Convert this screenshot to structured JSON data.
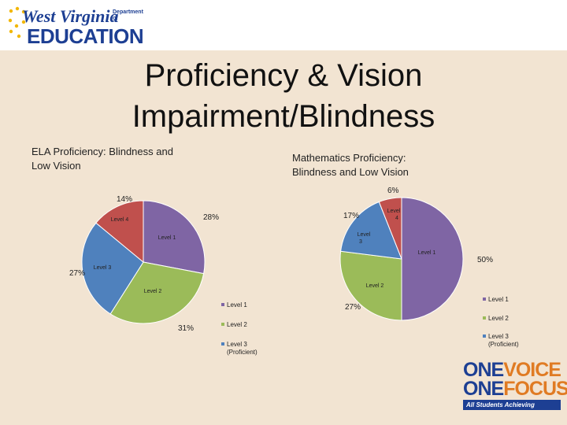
{
  "header": {
    "logo_line1": "West Virginia",
    "logo_dept": "Department of",
    "logo_line2": "EDUCATION"
  },
  "slide": {
    "title": "Proficiency & Vision Impairment/Blindness"
  },
  "branding": {
    "line1_prefix": "ONE",
    "line1_word": "VOICE",
    "line2_prefix": "ONE",
    "line2_word": "FOCUS",
    "tagline": "All Students Achieving"
  },
  "colors": {
    "level1": "#7f65a4",
    "level2": "#9bbb59",
    "level3": "#4f81bd",
    "level4": "#c0504d"
  },
  "chart_data": [
    {
      "type": "pie",
      "title": "ELA Proficiency: Blindness and Low Vision",
      "categories": [
        "Level 1",
        "Level 2",
        "Level 3",
        "Level 4"
      ],
      "values": [
        28,
        31,
        27,
        14
      ],
      "labels": [
        "28%",
        "31%",
        "27%",
        "14%"
      ],
      "slice_names": [
        "Level 1",
        "Level 2",
        "Level 3",
        "Level 4"
      ],
      "legend": [
        "Level 1",
        "Level 2",
        "Level 3 (Proficient)"
      ],
      "legend_position": "bottom-right"
    },
    {
      "type": "pie",
      "title": "Mathematics Proficiency: Blindness and Low Vision",
      "categories": [
        "Level 1",
        "Level 2",
        "Level 3",
        "Level 4"
      ],
      "values": [
        50,
        27,
        17,
        6
      ],
      "labels": [
        "50%",
        "27%",
        "17%",
        "6%"
      ],
      "slice_names": [
        "Level 1",
        "Level 2",
        "Level 3",
        "Level 4"
      ],
      "legend": [
        "Level 1",
        "Level 2",
        "Level 3 (Proficient)"
      ],
      "legend_position": "right"
    }
  ]
}
